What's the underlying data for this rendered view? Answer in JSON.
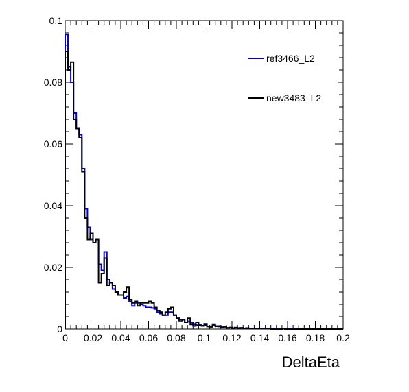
{
  "chart_data": {
    "type": "line",
    "style": "step-histogram",
    "xlabel": "DeltaEta",
    "ylabel": "",
    "xlim": [
      0,
      0.2
    ],
    "ylim": [
      0,
      0.1
    ],
    "grid": false,
    "legend_position": "top-right",
    "x_ticks": [
      "0",
      "0.02",
      "0.04",
      "0.06",
      "0.08",
      "0.1",
      "0.12",
      "0.14",
      "0.16",
      "0.18",
      "0.2"
    ],
    "y_ticks": [
      "0",
      "0.02",
      "0.04",
      "0.06",
      "0.08",
      "0.1"
    ],
    "bin_width": 0.002,
    "series": [
      {
        "name": "ref3466_L2",
        "color": "#0000cc",
        "values": [
          0.0955,
          0.085,
          0.08,
          0.07,
          0.065,
          0.063,
          0.052,
          0.039,
          0.033,
          0.029,
          0.028,
          0.029,
          0.021,
          0.019,
          0.025,
          0.016,
          0.015,
          0.013,
          0.012,
          0.011,
          0.011,
          0.01,
          0.0105,
          0.009,
          0.0075,
          0.0085,
          0.0085,
          0.008,
          0.0075,
          0.007,
          0.007,
          0.0068,
          0.0065,
          0.0055,
          0.005,
          0.0045,
          0.0045,
          0.0055,
          0.0055,
          0.0045,
          0.0035,
          0.003,
          0.003,
          0.002,
          0.0025,
          0.002,
          0.0015,
          0.0013,
          0.0012,
          0.0011,
          0.0013,
          0.0009,
          0.0008,
          0.0014,
          0.001,
          0.0008,
          0.0006,
          0.0007,
          0.0004,
          0.0005,
          0.0003,
          0.0005,
          0.0003,
          0.0004,
          0.0002,
          0.0003,
          0.0002,
          0.0002,
          0.0001,
          0.0002,
          0.0001,
          0.0002,
          0.0001,
          0.0001,
          0.0001,
          0.0,
          0.0001,
          0.0,
          0.0001,
          0.0,
          0.0,
          0.0001,
          0.0,
          0.0,
          0.0,
          0.0,
          0.0,
          0.0,
          0.0,
          0.0,
          0.0,
          0.0,
          0.0,
          0.0,
          0.0,
          0.0,
          0.0,
          0.0,
          0.0,
          0.0
        ]
      },
      {
        "name": "new3483_L2",
        "color": "#000000",
        "values": [
          0.09,
          0.084,
          0.0865,
          0.068,
          0.065,
          0.062,
          0.051,
          0.036,
          0.029,
          0.031,
          0.028,
          0.029,
          0.015,
          0.018,
          0.023,
          0.014,
          0.015,
          0.014,
          0.012,
          0.011,
          0.011,
          0.012,
          0.0135,
          0.0095,
          0.0085,
          0.009,
          0.0075,
          0.0085,
          0.0085,
          0.0085,
          0.009,
          0.0085,
          0.007,
          0.006,
          0.0055,
          0.0045,
          0.0055,
          0.0065,
          0.007,
          0.0045,
          0.0035,
          0.0025,
          0.003,
          0.002,
          0.0035,
          0.0015,
          0.001,
          0.002,
          0.0013,
          0.001,
          0.0015,
          0.0008,
          0.0007,
          0.0012,
          0.0009,
          0.001,
          0.0005,
          0.0008,
          0.0004,
          0.0005,
          0.0003,
          0.0004,
          0.0003,
          0.0004,
          0.0002,
          0.0003,
          0.0002,
          0.0002,
          0.0001,
          0.0002,
          0.0001,
          0.0001,
          0.0001,
          0.0001,
          0.0,
          0.0001,
          0.0,
          0.0,
          0.0001,
          0.0,
          0.0001,
          0.0,
          0.0,
          0.0,
          0.0,
          0.0,
          0.0,
          0.0,
          0.0,
          0.0,
          0.0,
          0.0,
          0.0,
          0.0,
          0.0,
          0.0,
          0.0,
          0.0,
          0.0,
          0.0
        ]
      }
    ]
  }
}
